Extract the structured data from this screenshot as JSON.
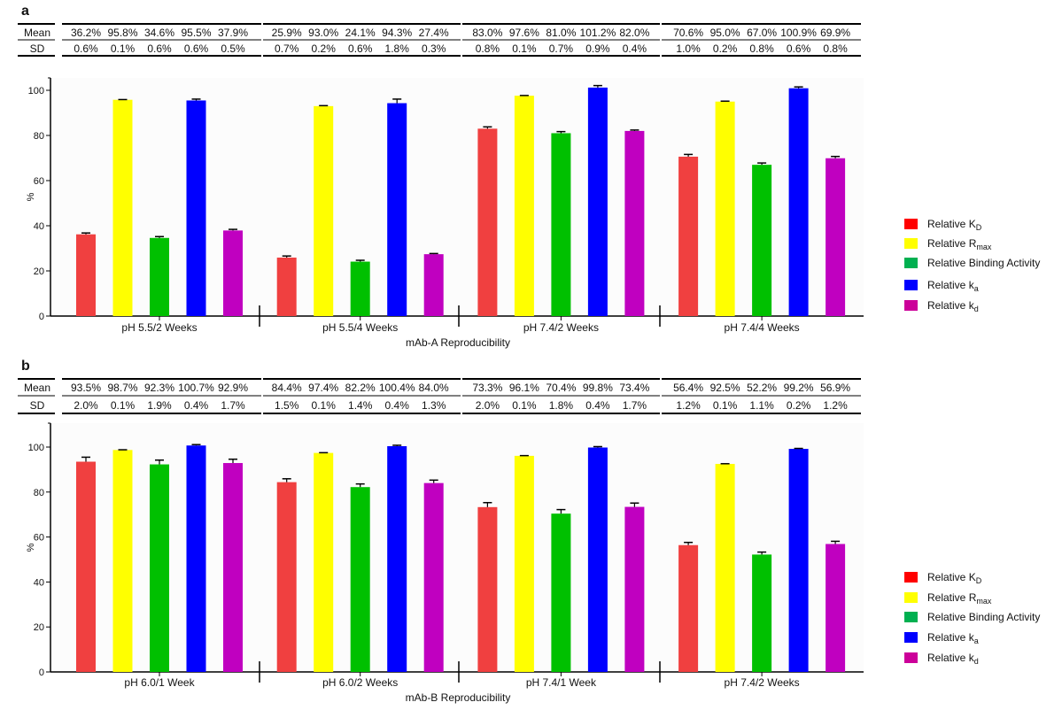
{
  "chart_data": [
    {
      "panel": "a",
      "type": "bar",
      "title": "mAb-A Reproducibility",
      "ylabel": "%",
      "ylim": [
        0,
        110
      ],
      "yticks": [
        0,
        20,
        40,
        60,
        80,
        100
      ],
      "grid": false,
      "legend_position": "right",
      "table_row_labels": [
        "Mean",
        "SD"
      ],
      "categories": [
        "pH 5.5/2 Weeks",
        "pH 5.5/4 Weeks",
        "pH 7.4/2 Weeks",
        "pH 7.4/4 Weeks"
      ],
      "series": [
        {
          "name": "Relative K",
          "subscript": "D",
          "color": "#f04040",
          "legend_color": "#ff0000",
          "values": [
            36.2,
            25.9,
            83.0,
            70.6
          ],
          "sd": [
            0.6,
            0.7,
            0.8,
            1.0
          ]
        },
        {
          "name": "Relative R",
          "subscript": "max",
          "color": "#ffff00",
          "legend_color": "#ffff00",
          "values": [
            95.8,
            93.0,
            97.6,
            95.0
          ],
          "sd": [
            0.1,
            0.2,
            0.1,
            0.2
          ]
        },
        {
          "name": "Relative Binding Activity",
          "subscript": "",
          "color": "#00c000",
          "legend_color": "#00b050",
          "values": [
            34.6,
            24.1,
            81.0,
            67.0
          ],
          "sd": [
            0.6,
            0.6,
            0.7,
            0.8
          ]
        },
        {
          "name": "Relative k",
          "subscript": "a",
          "color": "#0000ff",
          "legend_color": "#0000ff",
          "values": [
            95.5,
            94.3,
            101.2,
            100.9
          ],
          "sd": [
            0.6,
            1.8,
            0.9,
            0.6
          ]
        },
        {
          "name": "Relative k",
          "subscript": "d",
          "color": "#c000c0",
          "legend_color": "#cc0099",
          "values": [
            37.9,
            27.4,
            82.0,
            69.9
          ],
          "sd": [
            0.5,
            0.3,
            0.4,
            0.8
          ]
        }
      ]
    },
    {
      "panel": "b",
      "type": "bar",
      "title": "mAb-B Reproducibility",
      "ylabel": "%",
      "ylim": [
        0,
        110
      ],
      "yticks": [
        0,
        20,
        40,
        60,
        80,
        100
      ],
      "grid": false,
      "legend_position": "right",
      "table_row_labels": [
        "Mean",
        "SD"
      ],
      "categories": [
        "pH 6.0/1 Week",
        "pH 6.0/2 Weeks",
        "pH 7.4/1 Week",
        "pH 7.4/2 Weeks"
      ],
      "series": [
        {
          "name": "Relative K",
          "subscript": "D",
          "color": "#f04040",
          "legend_color": "#ff0000",
          "values": [
            93.5,
            84.4,
            73.3,
            56.4
          ],
          "sd": [
            2.0,
            1.5,
            2.0,
            1.2
          ]
        },
        {
          "name": "Relative R",
          "subscript": "max",
          "color": "#ffff00",
          "legend_color": "#ffff00",
          "values": [
            98.7,
            97.4,
            96.1,
            92.5
          ],
          "sd": [
            0.1,
            0.1,
            0.1,
            0.1
          ]
        },
        {
          "name": "Relative Binding Activity",
          "subscript": "",
          "color": "#00c000",
          "legend_color": "#00b050",
          "values": [
            92.3,
            82.2,
            70.4,
            52.2
          ],
          "sd": [
            1.9,
            1.4,
            1.8,
            1.1
          ]
        },
        {
          "name": "Relative k",
          "subscript": "a",
          "color": "#0000ff",
          "legend_color": "#0000ff",
          "values": [
            100.7,
            100.4,
            99.8,
            99.2
          ],
          "sd": [
            0.4,
            0.4,
            0.4,
            0.2
          ]
        },
        {
          "name": "Relative k",
          "subscript": "d",
          "color": "#c000c0",
          "legend_color": "#cc0099",
          "values": [
            92.9,
            84.0,
            73.4,
            56.9
          ],
          "sd": [
            1.7,
            1.3,
            1.7,
            1.2
          ]
        }
      ]
    }
  ]
}
